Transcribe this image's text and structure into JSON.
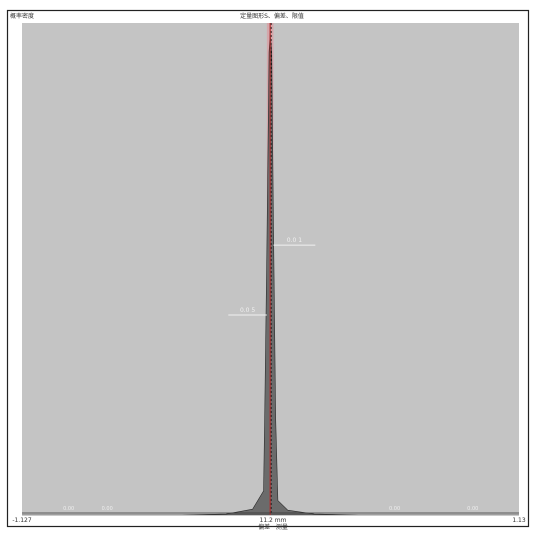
{
  "chart_data": {
    "type": "area",
    "title": "定量图形S、偏差、限值",
    "corner_label": "概率密度",
    "xlabel": "偏差 · 测量",
    "center_label": "11.2 mm",
    "x_min_label": "-1.127",
    "x_max_label": "1.13",
    "xlim": [
      -1.127,
      1.13
    ],
    "ylim": [
      0,
      1
    ],
    "center_x": 0.0,
    "band": [
      -0.015,
      0.015
    ],
    "distribution": [
      {
        "x": -1.127,
        "y": 0.0
      },
      {
        "x": -0.4,
        "y": 0.0
      },
      {
        "x": -0.2,
        "y": 0.002
      },
      {
        "x": -0.08,
        "y": 0.012
      },
      {
        "x": -0.03,
        "y": 0.05
      },
      {
        "x": -0.025,
        "y": 0.2
      },
      {
        "x": -0.015,
        "y": 0.55
      },
      {
        "x": -0.005,
        "y": 0.96
      },
      {
        "x": 0.0,
        "y": 1.0
      },
      {
        "x": 0.007,
        "y": 0.96
      },
      {
        "x": 0.015,
        "y": 0.6
      },
      {
        "x": 0.025,
        "y": 0.2
      },
      {
        "x": 0.035,
        "y": 0.03
      },
      {
        "x": 0.08,
        "y": 0.01
      },
      {
        "x": 0.2,
        "y": 0.002
      },
      {
        "x": 0.4,
        "y": 0.0
      },
      {
        "x": 1.13,
        "y": 0.0
      }
    ],
    "annotations": [
      {
        "label": "0.0 1",
        "x_from": 0.015,
        "x_to": 0.205,
        "y": 0.56
      },
      {
        "label": "0.0 5",
        "x_from": -0.19,
        "x_to": -0.015,
        "y": 0.415
      }
    ],
    "bottom_ticks": [
      {
        "label": "0.00",
        "x": -0.915
      },
      {
        "label": "0.00",
        "x": -0.74
      },
      {
        "label": "0.00",
        "x": 0.565
      },
      {
        "label": "0.00",
        "x": 0.92
      }
    ],
    "colors": {
      "plot_bg": "#c4c4c4",
      "fill": "#6b6b6b",
      "band": "#d6a4a9",
      "center_line": "#b33030",
      "median_line": "#111111",
      "annotation": "#f0f0f0"
    },
    "grid": false,
    "legend": "none"
  }
}
